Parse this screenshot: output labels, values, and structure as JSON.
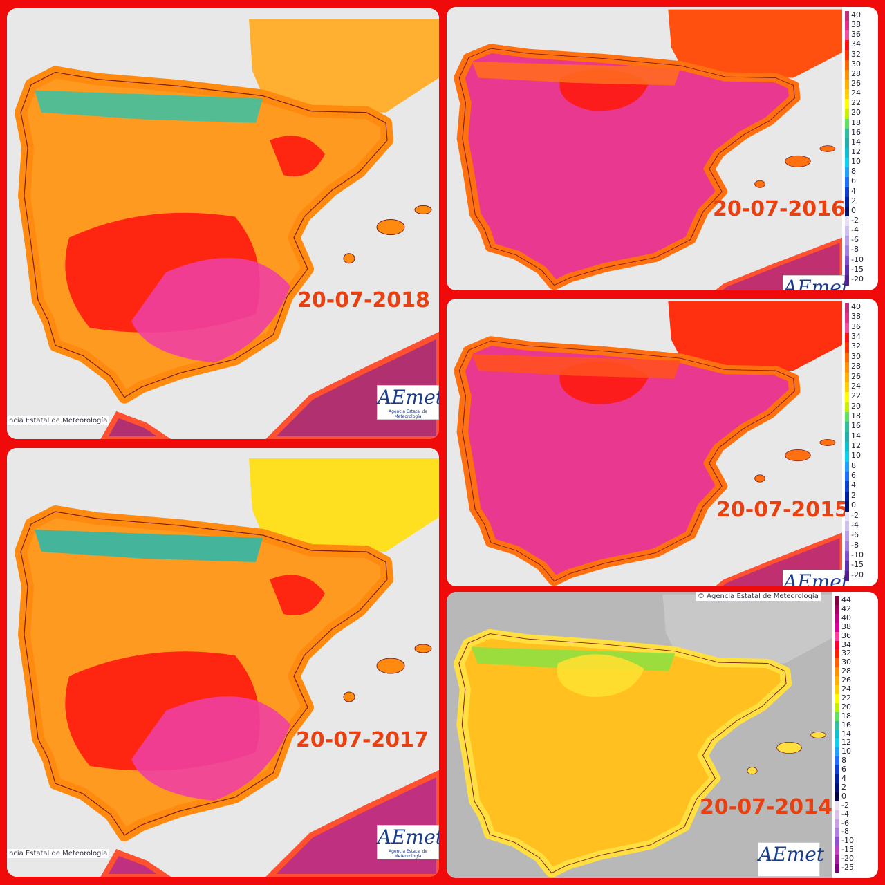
{
  "panels": [
    {
      "date": "20-07-2018",
      "logo": "AEmet",
      "logo_caption": "Agencia Estatal de Meteorología",
      "credit": "ncia Estatal de Meteorología"
    },
    {
      "date": "20-07-2017",
      "logo": "AEmet",
      "logo_caption": "Agencia Estatal de Meteorología",
      "credit": "ncia Estatal de Meteorología"
    },
    {
      "date": "20-07-2016",
      "logo": "AEmet"
    },
    {
      "date": "20-07-2015",
      "logo": "AEmet"
    },
    {
      "date": "20-07-2014",
      "logo": "AEmet",
      "credit": "© Agencia Estatal de Meteorología"
    }
  ],
  "legends": [
    {
      "labels": [
        40,
        38,
        36,
        34,
        32,
        30,
        28,
        26,
        24,
        22,
        20,
        18,
        16,
        14,
        12,
        10,
        8,
        6,
        4,
        2,
        0,
        -2,
        -4,
        -6,
        -8,
        -10,
        -15,
        -20
      ],
      "colors": [
        "#c0307a",
        "#e0308a",
        "#f050a0",
        "#ff1010",
        "#ff3300",
        "#ff6a00",
        "#ff9000",
        "#ffb000",
        "#ffd000",
        "#ffff00",
        "#c8f000",
        "#60e060",
        "#30c0a0",
        "#20b0b0",
        "#10c0d0",
        "#10d0f0",
        "#20a0ff",
        "#2070ff",
        "#1040d0",
        "#0020a0",
        "#001070",
        "#e8e0f8",
        "#d0c0f0",
        "#b8a0e8",
        "#a080e0",
        "#8050d0",
        "#6030b0",
        "#502090"
      ]
    },
    {
      "labels": [
        40,
        38,
        36,
        34,
        32,
        30,
        28,
        26,
        24,
        22,
        20,
        18,
        16,
        14,
        12,
        10,
        8,
        6,
        4,
        2,
        0,
        -2,
        -4,
        -6,
        -8,
        -10,
        -15,
        -20
      ],
      "colors": [
        "#c0307a",
        "#e0308a",
        "#f050a0",
        "#ff1010",
        "#ff3300",
        "#ff6a00",
        "#ff9000",
        "#ffb000",
        "#ffd000",
        "#ffff00",
        "#c8f000",
        "#60e060",
        "#30c0a0",
        "#20b0b0",
        "#10c0d0",
        "#10d0f0",
        "#20a0ff",
        "#2070ff",
        "#1040d0",
        "#0020a0",
        "#001070",
        "#e8e0f8",
        "#d0c0f0",
        "#b8a0e8",
        "#a080e0",
        "#8050d0",
        "#6030b0",
        "#502090"
      ]
    },
    {
      "labels": [
        44,
        42,
        40,
        38,
        36,
        34,
        32,
        30,
        28,
        26,
        24,
        22,
        20,
        18,
        16,
        14,
        12,
        10,
        8,
        6,
        4,
        2,
        0,
        -2,
        -4,
        -6,
        -8,
        -10,
        -15,
        -20,
        -25
      ],
      "colors": [
        "#800040",
        "#a00060",
        "#c00080",
        "#e000a0",
        "#ff40a0",
        "#ff0030",
        "#ff2000",
        "#ff6000",
        "#ff9000",
        "#ffb000",
        "#ffd000",
        "#ffff00",
        "#c0f000",
        "#60e060",
        "#30c0a0",
        "#10c0d0",
        "#10d0f0",
        "#20a0ff",
        "#2070ff",
        "#1040d0",
        "#0020a0",
        "#001070",
        "#000040",
        "#e8e0f0",
        "#d8c0e8",
        "#c8a0e0",
        "#b080e0",
        "#9050d0",
        "#c040c0",
        "#a020a0",
        "#800080"
      ]
    }
  ]
}
